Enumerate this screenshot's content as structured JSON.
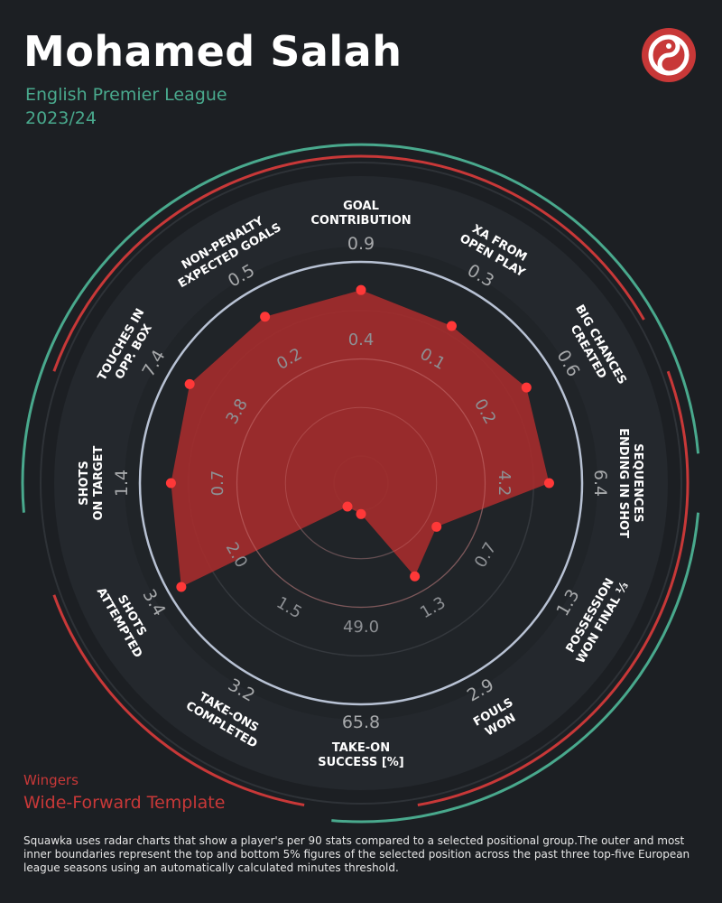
{
  "header": {
    "player": "Mohamed Salah",
    "league": "English Premier League",
    "season": "2023/24"
  },
  "footer": {
    "group": "Wingers",
    "template": "Wide-Forward Template",
    "note": "Squawka uses radar charts that show a player's per 90 stats compared to a selected positional group.The outer and most inner boundaries represent the top and bottom 5% figures of the selected position across the past three top-five European league seasons using an automatically calculated minutes threshold."
  },
  "colors": {
    "background": "#1c1f23",
    "accent_red": "#c83838",
    "accent_green": "#49a98d",
    "fill": "#a32d2d",
    "point": "#ff3838"
  },
  "chart_data": {
    "type": "radar",
    "metrics": [
      {
        "label": [
          "GOAL",
          "CONTRIBUTION"
        ],
        "value": "0.9",
        "mid": "0.4",
        "pct": 0.855
      },
      {
        "label": [
          "XA FROM",
          "OPEN PLAY"
        ],
        "value": "0.3",
        "mid": "0.1",
        "pct": 0.795
      },
      {
        "label": [
          "BIG CHANCES",
          "CREATED"
        ],
        "value": "0.6",
        "mid": "0.2",
        "pct": 0.845
      },
      {
        "label": [
          "SEQUENCES",
          "ENDING IN SHOT"
        ],
        "value": "6.4",
        "mid": "4.2",
        "pct": 0.83
      },
      {
        "label": [
          "POSSESSION",
          "WON FINAL ⅓"
        ],
        "value": "1.3",
        "mid": "0.7",
        "pct": 0.31
      },
      {
        "label": [
          "FOULS",
          "WON"
        ],
        "value": "2.9",
        "mid": "1.3",
        "pct": 0.415
      },
      {
        "label": [
          "TAKE-ON",
          "SUCCESS [%]"
        ],
        "value": "65.8",
        "mid": "49.0",
        "pct": 0.02
      },
      {
        "label": [
          "TAKE-ONS",
          "COMPLETED"
        ],
        "value": "3.2",
        "mid": "1.5",
        "pct": 0.0
      },
      {
        "label": [
          "SHOTS",
          "ATTEMPTED"
        ],
        "value": "3.4",
        "mid": "2.0",
        "pct": 0.93
      },
      {
        "label": [
          "SHOTS",
          "ON TARGET"
        ],
        "value": "1.4",
        "mid": "0.7",
        "pct": 0.84
      },
      {
        "label": [
          "TOUCHES IN",
          "OPP. BOX"
        ],
        "value": "7.4",
        "mid": "3.8",
        "pct": 0.88
      },
      {
        "label": [
          "NON-PENALTY",
          "EXPECTED GOALS"
        ],
        "value": "0.5",
        "mid": "0.2",
        "pct": 0.85
      }
    ]
  }
}
